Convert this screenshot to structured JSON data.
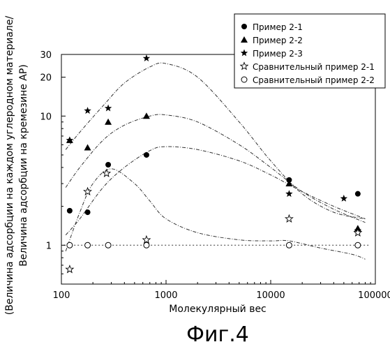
{
  "chart_data": {
    "type": "scatter",
    "title": "",
    "xlabel": "Молекулярный вес",
    "ylabel_line1": "(Величина адсорбции на каждом углеродном материале/",
    "ylabel_line2": "Величина адсорбции на кремезине AP)",
    "x_scale": "log",
    "y_scale": "log",
    "xlim": [
      100,
      100000
    ],
    "ylim": [
      0.5,
      30
    ],
    "x_ticks": [
      100,
      1000,
      10000,
      100000
    ],
    "x_tick_labels": [
      "100",
      "1000",
      "10000",
      "100000"
    ],
    "y_ticks": [
      1,
      10,
      20,
      30
    ],
    "y_tick_labels": [
      "1",
      "10",
      "20",
      "30"
    ],
    "grid": false,
    "legend_position": "top-right",
    "series": [
      {
        "name": "Пример 2-1",
        "marker": "circle",
        "points": [
          [
            120,
            1.85
          ],
          [
            178,
            1.8
          ],
          [
            280,
            4.2
          ],
          [
            650,
            5.0
          ],
          [
            15000,
            3.2
          ],
          [
            68000,
            2.5
          ]
        ],
        "fit": [
          [
            110,
            1.2
          ],
          [
            150,
            1.6
          ],
          [
            250,
            2.8
          ],
          [
            400,
            4.0
          ],
          [
            700,
            5.4
          ],
          [
            1000,
            5.8
          ],
          [
            2000,
            5.5
          ],
          [
            5000,
            4.5
          ],
          [
            10000,
            3.5
          ],
          [
            20000,
            2.6
          ],
          [
            40000,
            2.0
          ],
          [
            80000,
            1.6
          ]
        ]
      },
      {
        "name": "Пример 2-2",
        "marker": "triangle",
        "points": [
          [
            120,
            6.5
          ],
          [
            178,
            5.7
          ],
          [
            280,
            9.0
          ],
          [
            650,
            10.0
          ],
          [
            15000,
            3.0
          ],
          [
            68000,
            1.35
          ]
        ],
        "fit": [
          [
            110,
            2.8
          ],
          [
            150,
            4.0
          ],
          [
            250,
            6.5
          ],
          [
            400,
            8.5
          ],
          [
            700,
            10.0
          ],
          [
            1000,
            10.2
          ],
          [
            2000,
            9.0
          ],
          [
            5000,
            6.0
          ],
          [
            10000,
            4.0
          ],
          [
            20000,
            2.6
          ],
          [
            40000,
            1.9
          ],
          [
            80000,
            1.5
          ]
        ]
      },
      {
        "name": "Пример 2-3",
        "marker": "star",
        "points": [
          [
            120,
            6.5
          ],
          [
            178,
            11.0
          ],
          [
            280,
            11.5
          ],
          [
            650,
            28.0
          ],
          [
            15000,
            2.5
          ],
          [
            50000,
            2.3
          ],
          [
            68000,
            1.3
          ]
        ],
        "fit": [
          [
            110,
            5.5
          ],
          [
            150,
            7.5
          ],
          [
            250,
            12.0
          ],
          [
            400,
            18.0
          ],
          [
            700,
            24.0
          ],
          [
            1000,
            25.5
          ],
          [
            2000,
            20.0
          ],
          [
            5000,
            9.0
          ],
          [
            10000,
            4.5
          ],
          [
            20000,
            2.5
          ],
          [
            40000,
            1.8
          ],
          [
            80000,
            1.6
          ]
        ]
      },
      {
        "name": "Сравнительный пример 2-1",
        "marker": "star-open",
        "points": [
          [
            120,
            0.65
          ],
          [
            178,
            2.6
          ],
          [
            270,
            3.6
          ],
          [
            650,
            1.1
          ],
          [
            15000,
            1.6
          ],
          [
            68000,
            1.25
          ]
        ],
        "fit": [
          [
            110,
            0.9
          ],
          [
            150,
            1.8
          ],
          [
            200,
            3.0
          ],
          [
            300,
            3.9
          ],
          [
            500,
            3.0
          ],
          [
            700,
            2.2
          ],
          [
            1000,
            1.6
          ],
          [
            2000,
            1.25
          ],
          [
            5000,
            1.1
          ],
          [
            10000,
            1.08
          ],
          [
            15000,
            1.08
          ],
          [
            30000,
            0.95
          ],
          [
            60000,
            0.85
          ],
          [
            80000,
            0.78
          ]
        ]
      },
      {
        "name": "Сравнительный пример 2-2",
        "marker": "circle-open",
        "points": [
          [
            120,
            1.0
          ],
          [
            178,
            1.0
          ],
          [
            280,
            1.0
          ],
          [
            650,
            1.0
          ],
          [
            15000,
            1.0
          ],
          [
            68000,
            1.0
          ]
        ],
        "fit": [
          [
            105,
            1.0
          ],
          [
            90000,
            1.0
          ]
        ]
      }
    ]
  },
  "caption": "Фиг.4"
}
